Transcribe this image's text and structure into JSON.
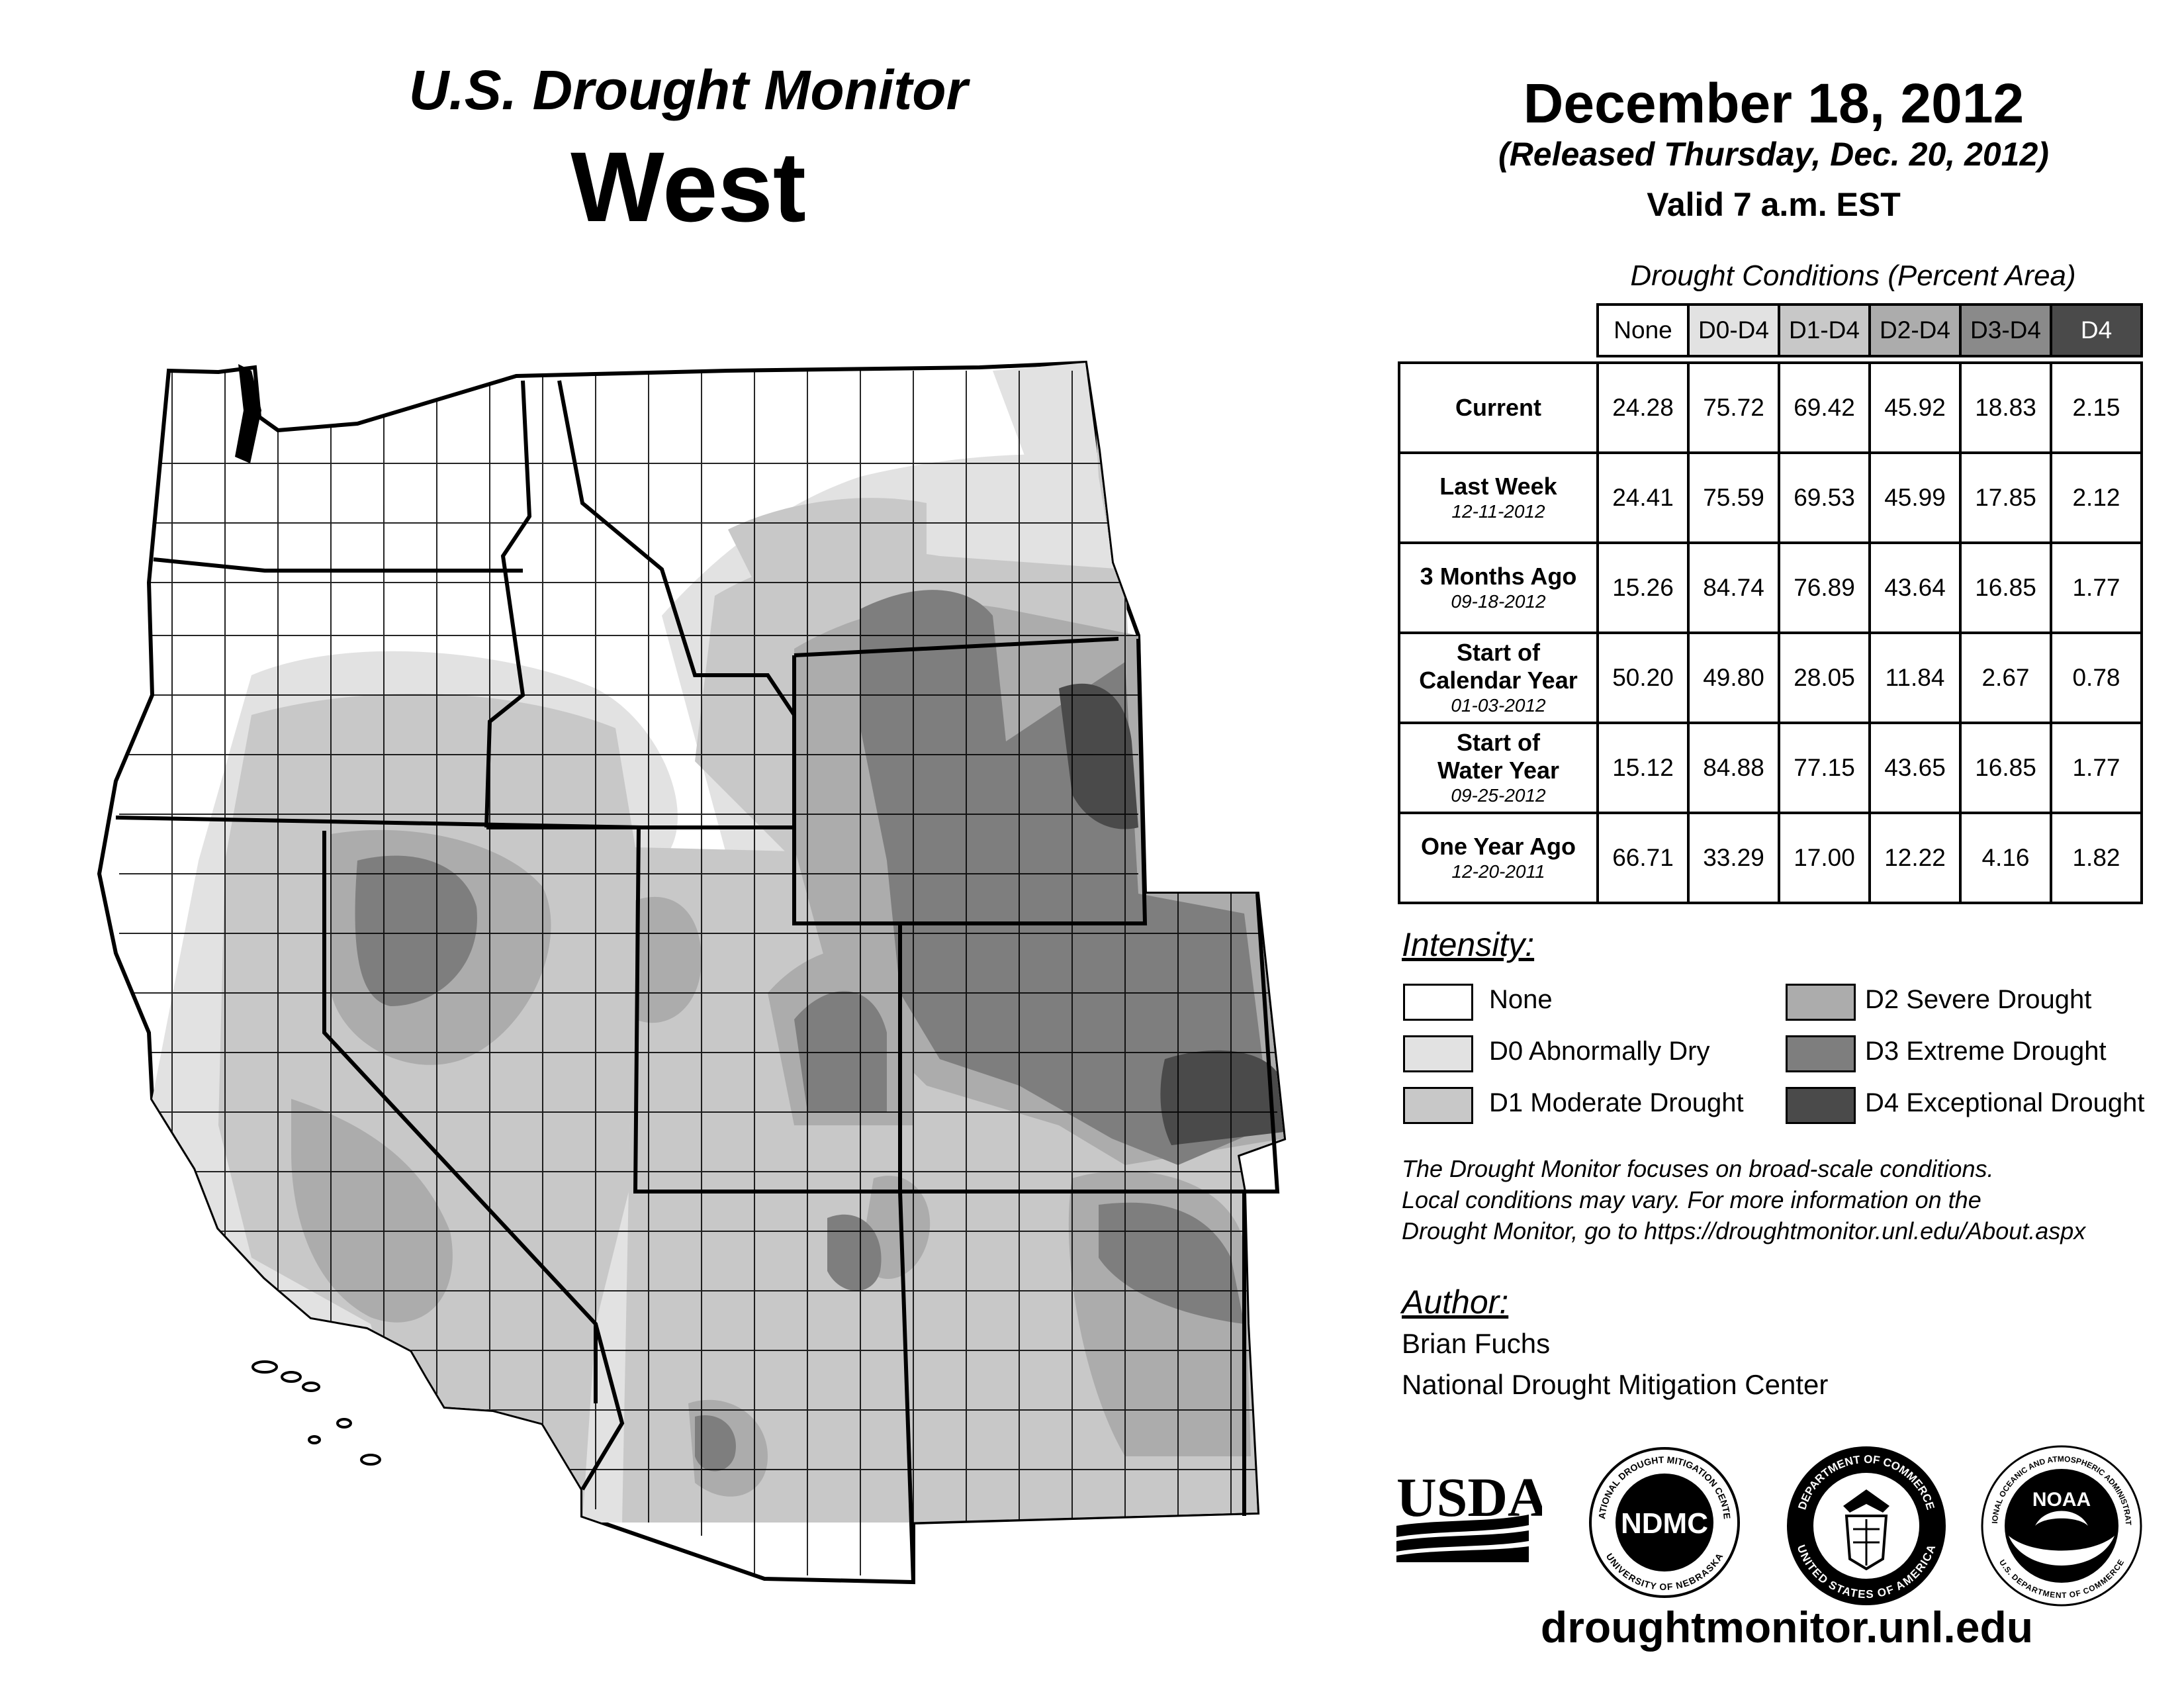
{
  "header": {
    "title": "U.S. Drought Monitor",
    "region": "West",
    "date": "December 18, 2012",
    "released": "(Released Thursday, Dec. 20, 2012)",
    "valid": "Valid 7 a.m. EST"
  },
  "table": {
    "caption": "Drought Conditions (Percent Area)",
    "columns": [
      "None",
      "D0-D4",
      "D1-D4",
      "D2-D4",
      "D3-D4",
      "D4"
    ],
    "header_colors": [
      "#ffffff",
      "#e2e2e2",
      "#c8c8c8",
      "#acacac",
      "#8a8a8a",
      "#4a4a4a"
    ],
    "rows": [
      {
        "label": "Current",
        "date": "",
        "values": [
          "24.28",
          "75.72",
          "69.42",
          "45.92",
          "18.83",
          "2.15"
        ]
      },
      {
        "label": "Last Week",
        "date": "12-11-2012",
        "values": [
          "24.41",
          "75.59",
          "69.53",
          "45.99",
          "17.85",
          "2.12"
        ]
      },
      {
        "label": "3 Months Ago",
        "date": "09-18-2012",
        "values": [
          "15.26",
          "84.74",
          "76.89",
          "43.64",
          "16.85",
          "1.77"
        ]
      },
      {
        "label": "Start of Calendar Year",
        "date": "01-03-2012",
        "values": [
          "50.20",
          "49.80",
          "28.05",
          "11.84",
          "2.67",
          "0.78"
        ]
      },
      {
        "label": "Start of Water Year",
        "date": "09-25-2012",
        "values": [
          "15.12",
          "84.88",
          "77.15",
          "43.65",
          "16.85",
          "1.77"
        ]
      },
      {
        "label": "One Year Ago",
        "date": "12-20-2011",
        "values": [
          "66.71",
          "33.29",
          "17.00",
          "12.22",
          "4.16",
          "1.82"
        ]
      }
    ]
  },
  "legend": {
    "heading": "Intensity:",
    "items": [
      {
        "label": "None",
        "color": "#ffffff"
      },
      {
        "label": "D0 Abnormally Dry",
        "color": "#e2e2e2"
      },
      {
        "label": "D1 Moderate Drought",
        "color": "#c8c8c8"
      },
      {
        "label": "D2 Severe Drought",
        "color": "#acacac"
      },
      {
        "label": "D3 Extreme Drought",
        "color": "#7e7e7e"
      },
      {
        "label": "D4 Exceptional Drought",
        "color": "#4a4a4a"
      }
    ]
  },
  "note": {
    "line1": "The Drought Monitor focuses on broad-scale conditions.",
    "line2": "Local conditions may vary. For more information on the",
    "line3": "Drought Monitor, go to https://droughtmonitor.unl.edu/About.aspx"
  },
  "author": {
    "heading": "Author:",
    "name": "Brian Fuchs",
    "org": "National Drought Mitigation Center"
  },
  "logos": {
    "usda": "USDA",
    "ndmc": "NDMC",
    "ndmc_ring_top": "NATIONAL DROUGHT MITIGATION CENTER",
    "ndmc_ring_bottom": "UNIVERSITY OF NEBRASKA",
    "commerce_ring_top": "DEPARTMENT OF COMMERCE",
    "commerce_ring_bottom": "UNITED STATES OF AMERICA",
    "noaa": "NOAA",
    "noaa_ring_top": "NATIONAL OCEANIC AND ATMOSPHERIC ADMINISTRATION",
    "noaa_ring_bottom": "U.S. DEPARTMENT OF COMMERCE"
  },
  "footer": {
    "site": "droughtmonitor.unl.edu"
  }
}
